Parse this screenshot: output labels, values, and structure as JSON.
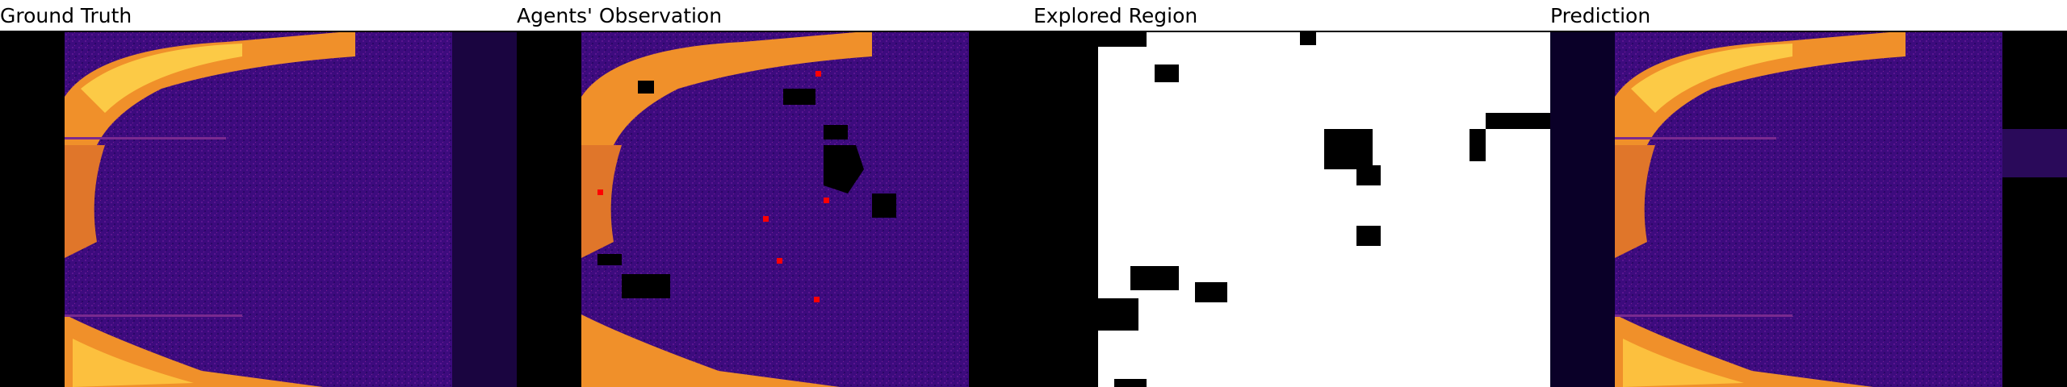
{
  "colors": {
    "heat_background": "#3a0a7a",
    "heat_hot": "#f5a623",
    "heat_cold": "#000000",
    "explored_white": "#ffffff",
    "agent_marker": "#ff0000"
  },
  "panels": [
    {
      "title": "Ground Truth",
      "content": "heatmap-full"
    },
    {
      "title": "Agents' Observation",
      "content": "heatmap-partial-with-agents"
    },
    {
      "title": "Explored Region",
      "content": "binary-mask"
    },
    {
      "title": "Prediction",
      "content": "heatmap-full"
    }
  ]
}
